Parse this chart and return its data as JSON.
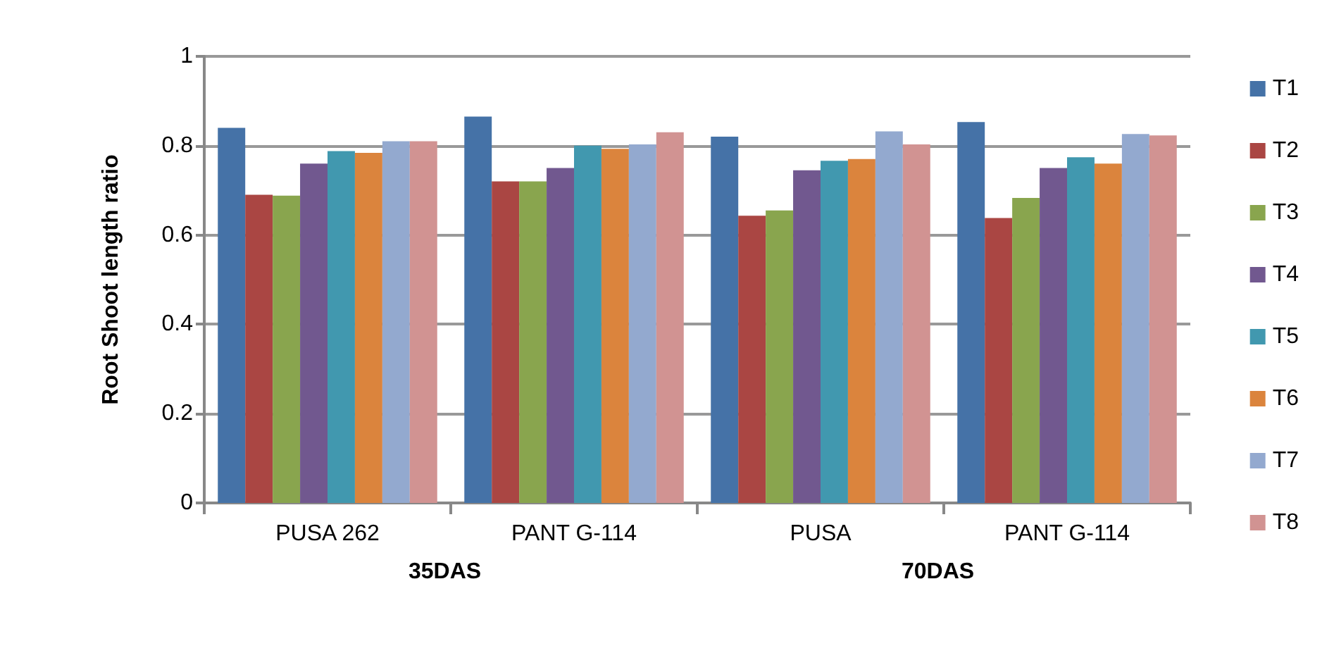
{
  "chart_data": {
    "type": "bar",
    "ylabel": "Root Shoot length ratio",
    "categories": [
      "PUSA 262",
      "PANT G-114",
      "PUSA",
      "PANT G-114"
    ],
    "annotations": [
      "35DAS",
      "70DAS"
    ],
    "series": [
      {
        "name": "T1",
        "color": "#4572a7",
        "values": [
          0.84,
          0.865,
          0.82,
          0.853
        ]
      },
      {
        "name": "T2",
        "color": "#aa4643",
        "values": [
          0.69,
          0.72,
          0.643,
          0.638
        ]
      },
      {
        "name": "T3",
        "color": "#89a54e",
        "values": [
          0.688,
          0.72,
          0.655,
          0.683
        ]
      },
      {
        "name": "T4",
        "color": "#71588f",
        "values": [
          0.76,
          0.75,
          0.745,
          0.75
        ]
      },
      {
        "name": "T5",
        "color": "#4198af",
        "values": [
          0.788,
          0.8,
          0.766,
          0.774
        ]
      },
      {
        "name": "T6",
        "color": "#db843d",
        "values": [
          0.784,
          0.793,
          0.77,
          0.76
        ]
      },
      {
        "name": "T7",
        "color": "#93a9cf",
        "values": [
          0.81,
          0.803,
          0.832,
          0.826
        ]
      },
      {
        "name": "T8",
        "color": "#d19392",
        "values": [
          0.81,
          0.83,
          0.803,
          0.823
        ]
      }
    ],
    "ylim": [
      0,
      1
    ],
    "yticks": [
      0,
      0.2,
      0.4,
      0.6,
      0.8,
      1
    ],
    "grid": "y",
    "legend": "right"
  }
}
